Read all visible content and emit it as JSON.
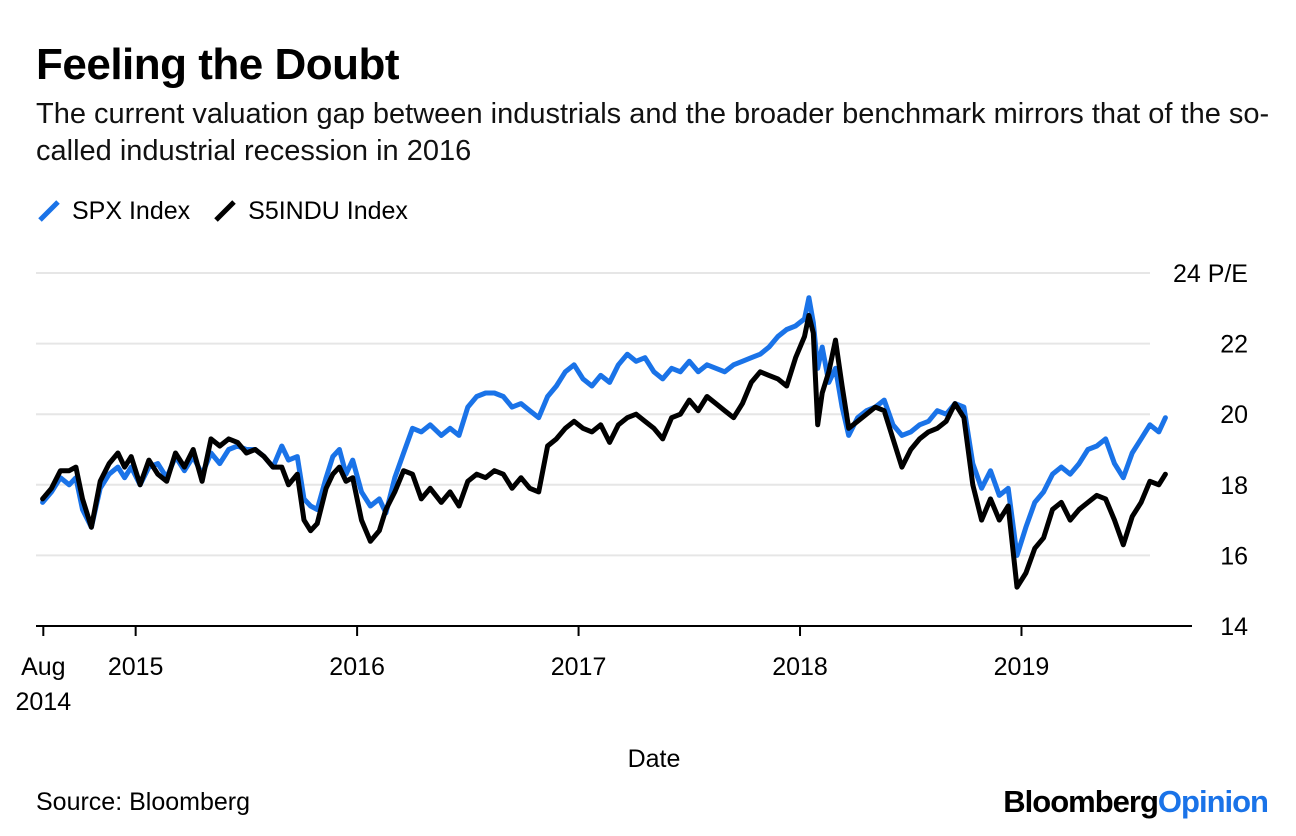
{
  "title": "Feeling the Doubt",
  "subtitle": "The current valuation gap between industrials and the broader benchmark mirrors that of the so-called industrial recession in 2016",
  "source": "Source: Bloomberg",
  "logo": {
    "brand": "Bloomberg",
    "section": "Opinion"
  },
  "colors": {
    "spx": "#1a73e8",
    "indu": "#000000",
    "grid": "#e6e6e6",
    "logo_accent": "#1a73e8"
  },
  "chart_data": {
    "type": "line",
    "xlabel": "Date",
    "ylabel": "",
    "y_unit_label": "P/E",
    "ylim": [
      14,
      24
    ],
    "xlim": [
      2014.55,
      2019.77
    ],
    "yticks": [
      14,
      16,
      18,
      20,
      22,
      24
    ],
    "xticks": [
      {
        "value": 2014.583,
        "label": "Aug",
        "sublabel": "2014"
      },
      {
        "value": 2015.0,
        "label": "2015"
      },
      {
        "value": 2016.0,
        "label": "2016"
      },
      {
        "value": 2017.0,
        "label": "2017"
      },
      {
        "value": 2018.0,
        "label": "2018"
      },
      {
        "value": 2019.0,
        "label": "2019"
      }
    ],
    "grid": true,
    "legend_position": "top-left",
    "series": [
      {
        "name": "SPX Index",
        "color": "#1a73e8",
        "points": [
          [
            2014.58,
            17.5
          ],
          [
            2014.62,
            17.8
          ],
          [
            2014.66,
            18.2
          ],
          [
            2014.7,
            18.0
          ],
          [
            2014.73,
            18.2
          ],
          [
            2014.76,
            17.3
          ],
          [
            2014.8,
            16.8
          ],
          [
            2014.84,
            17.9
          ],
          [
            2014.88,
            18.3
          ],
          [
            2014.92,
            18.5
          ],
          [
            2014.95,
            18.2
          ],
          [
            2014.98,
            18.5
          ],
          [
            2015.02,
            18.0
          ],
          [
            2015.06,
            18.5
          ],
          [
            2015.1,
            18.6
          ],
          [
            2015.14,
            18.2
          ],
          [
            2015.18,
            18.8
          ],
          [
            2015.22,
            18.4
          ],
          [
            2015.26,
            18.8
          ],
          [
            2015.3,
            18.3
          ],
          [
            2015.34,
            18.9
          ],
          [
            2015.38,
            18.6
          ],
          [
            2015.42,
            19.0
          ],
          [
            2015.46,
            19.1
          ],
          [
            2015.5,
            19.0
          ],
          [
            2015.54,
            19.0
          ],
          [
            2015.58,
            18.8
          ],
          [
            2015.62,
            18.5
          ],
          [
            2015.66,
            19.1
          ],
          [
            2015.69,
            18.7
          ],
          [
            2015.73,
            18.8
          ],
          [
            2015.76,
            17.6
          ],
          [
            2015.79,
            17.4
          ],
          [
            2015.82,
            17.3
          ],
          [
            2015.86,
            18.2
          ],
          [
            2015.89,
            18.8
          ],
          [
            2015.92,
            19.0
          ],
          [
            2015.95,
            18.3
          ],
          [
            2015.98,
            18.7
          ],
          [
            2016.02,
            17.8
          ],
          [
            2016.06,
            17.4
          ],
          [
            2016.1,
            17.6
          ],
          [
            2016.13,
            17.2
          ],
          [
            2016.17,
            18.2
          ],
          [
            2016.21,
            18.9
          ],
          [
            2016.25,
            19.6
          ],
          [
            2016.29,
            19.5
          ],
          [
            2016.33,
            19.7
          ],
          [
            2016.38,
            19.4
          ],
          [
            2016.42,
            19.6
          ],
          [
            2016.46,
            19.4
          ],
          [
            2016.5,
            20.2
          ],
          [
            2016.54,
            20.5
          ],
          [
            2016.58,
            20.6
          ],
          [
            2016.62,
            20.6
          ],
          [
            2016.66,
            20.5
          ],
          [
            2016.7,
            20.2
          ],
          [
            2016.74,
            20.3
          ],
          [
            2016.78,
            20.1
          ],
          [
            2016.82,
            19.9
          ],
          [
            2016.86,
            20.5
          ],
          [
            2016.9,
            20.8
          ],
          [
            2016.94,
            21.2
          ],
          [
            2016.98,
            21.4
          ],
          [
            2017.02,
            21.0
          ],
          [
            2017.06,
            20.8
          ],
          [
            2017.1,
            21.1
          ],
          [
            2017.14,
            20.9
          ],
          [
            2017.18,
            21.4
          ],
          [
            2017.22,
            21.7
          ],
          [
            2017.26,
            21.5
          ],
          [
            2017.3,
            21.6
          ],
          [
            2017.34,
            21.2
          ],
          [
            2017.38,
            21.0
          ],
          [
            2017.42,
            21.3
          ],
          [
            2017.46,
            21.2
          ],
          [
            2017.5,
            21.5
          ],
          [
            2017.54,
            21.2
          ],
          [
            2017.58,
            21.4
          ],
          [
            2017.62,
            21.3
          ],
          [
            2017.66,
            21.2
          ],
          [
            2017.7,
            21.4
          ],
          [
            2017.74,
            21.5
          ],
          [
            2017.78,
            21.6
          ],
          [
            2017.82,
            21.7
          ],
          [
            2017.86,
            21.9
          ],
          [
            2017.9,
            22.2
          ],
          [
            2017.94,
            22.4
          ],
          [
            2017.98,
            22.5
          ],
          [
            2018.02,
            22.7
          ],
          [
            2018.04,
            23.3
          ],
          [
            2018.06,
            22.6
          ],
          [
            2018.08,
            21.3
          ],
          [
            2018.1,
            21.9
          ],
          [
            2018.13,
            20.9
          ],
          [
            2018.16,
            21.3
          ],
          [
            2018.19,
            20.2
          ],
          [
            2018.22,
            19.4
          ],
          [
            2018.26,
            19.9
          ],
          [
            2018.3,
            20.1
          ],
          [
            2018.34,
            20.2
          ],
          [
            2018.38,
            20.4
          ],
          [
            2018.42,
            19.7
          ],
          [
            2018.46,
            19.4
          ],
          [
            2018.5,
            19.5
          ],
          [
            2018.54,
            19.7
          ],
          [
            2018.58,
            19.8
          ],
          [
            2018.62,
            20.1
          ],
          [
            2018.66,
            20.0
          ],
          [
            2018.7,
            20.3
          ],
          [
            2018.74,
            20.2
          ],
          [
            2018.78,
            18.6
          ],
          [
            2018.82,
            17.9
          ],
          [
            2018.86,
            18.4
          ],
          [
            2018.9,
            17.7
          ],
          [
            2018.94,
            17.9
          ],
          [
            2018.98,
            16.0
          ],
          [
            2019.02,
            16.8
          ],
          [
            2019.06,
            17.5
          ],
          [
            2019.1,
            17.8
          ],
          [
            2019.14,
            18.3
          ],
          [
            2019.18,
            18.5
          ],
          [
            2019.22,
            18.3
          ],
          [
            2019.26,
            18.6
          ],
          [
            2019.3,
            19.0
          ],
          [
            2019.34,
            19.1
          ],
          [
            2019.38,
            19.3
          ],
          [
            2019.42,
            18.6
          ],
          [
            2019.46,
            18.2
          ],
          [
            2019.5,
            18.9
          ],
          [
            2019.54,
            19.3
          ],
          [
            2019.58,
            19.7
          ],
          [
            2019.62,
            19.5
          ],
          [
            2019.65,
            19.9
          ]
        ]
      },
      {
        "name": "S5INDU Index",
        "color": "#000000",
        "points": [
          [
            2014.58,
            17.6
          ],
          [
            2014.62,
            17.9
          ],
          [
            2014.66,
            18.4
          ],
          [
            2014.7,
            18.4
          ],
          [
            2014.73,
            18.5
          ],
          [
            2014.76,
            17.6
          ],
          [
            2014.8,
            16.8
          ],
          [
            2014.84,
            18.1
          ],
          [
            2014.88,
            18.6
          ],
          [
            2014.92,
            18.9
          ],
          [
            2014.95,
            18.5
          ],
          [
            2014.98,
            18.8
          ],
          [
            2015.02,
            18.0
          ],
          [
            2015.06,
            18.7
          ],
          [
            2015.1,
            18.3
          ],
          [
            2015.14,
            18.1
          ],
          [
            2015.18,
            18.9
          ],
          [
            2015.22,
            18.5
          ],
          [
            2015.26,
            19.0
          ],
          [
            2015.3,
            18.1
          ],
          [
            2015.34,
            19.3
          ],
          [
            2015.38,
            19.1
          ],
          [
            2015.42,
            19.3
          ],
          [
            2015.46,
            19.2
          ],
          [
            2015.5,
            18.9
          ],
          [
            2015.54,
            19.0
          ],
          [
            2015.58,
            18.8
          ],
          [
            2015.62,
            18.5
          ],
          [
            2015.66,
            18.5
          ],
          [
            2015.69,
            18.0
          ],
          [
            2015.73,
            18.3
          ],
          [
            2015.76,
            17.0
          ],
          [
            2015.79,
            16.7
          ],
          [
            2015.82,
            16.9
          ],
          [
            2015.86,
            17.9
          ],
          [
            2015.89,
            18.3
          ],
          [
            2015.92,
            18.5
          ],
          [
            2015.95,
            18.1
          ],
          [
            2015.98,
            18.2
          ],
          [
            2016.02,
            17.0
          ],
          [
            2016.06,
            16.4
          ],
          [
            2016.1,
            16.7
          ],
          [
            2016.13,
            17.3
          ],
          [
            2016.17,
            17.8
          ],
          [
            2016.21,
            18.4
          ],
          [
            2016.25,
            18.3
          ],
          [
            2016.29,
            17.6
          ],
          [
            2016.33,
            17.9
          ],
          [
            2016.38,
            17.5
          ],
          [
            2016.42,
            17.8
          ],
          [
            2016.46,
            17.4
          ],
          [
            2016.5,
            18.1
          ],
          [
            2016.54,
            18.3
          ],
          [
            2016.58,
            18.2
          ],
          [
            2016.62,
            18.4
          ],
          [
            2016.66,
            18.3
          ],
          [
            2016.7,
            17.9
          ],
          [
            2016.74,
            18.2
          ],
          [
            2016.78,
            17.9
          ],
          [
            2016.82,
            17.8
          ],
          [
            2016.86,
            19.1
          ],
          [
            2016.9,
            19.3
          ],
          [
            2016.94,
            19.6
          ],
          [
            2016.98,
            19.8
          ],
          [
            2017.02,
            19.6
          ],
          [
            2017.06,
            19.5
          ],
          [
            2017.1,
            19.7
          ],
          [
            2017.14,
            19.2
          ],
          [
            2017.18,
            19.7
          ],
          [
            2017.22,
            19.9
          ],
          [
            2017.26,
            20.0
          ],
          [
            2017.3,
            19.8
          ],
          [
            2017.34,
            19.6
          ],
          [
            2017.38,
            19.3
          ],
          [
            2017.42,
            19.9
          ],
          [
            2017.46,
            20.0
          ],
          [
            2017.5,
            20.4
          ],
          [
            2017.54,
            20.1
          ],
          [
            2017.58,
            20.5
          ],
          [
            2017.62,
            20.3
          ],
          [
            2017.66,
            20.1
          ],
          [
            2017.7,
            19.9
          ],
          [
            2017.74,
            20.3
          ],
          [
            2017.78,
            20.9
          ],
          [
            2017.82,
            21.2
          ],
          [
            2017.86,
            21.1
          ],
          [
            2017.9,
            21.0
          ],
          [
            2017.94,
            20.8
          ],
          [
            2017.98,
            21.6
          ],
          [
            2018.02,
            22.2
          ],
          [
            2018.04,
            22.8
          ],
          [
            2018.06,
            22.3
          ],
          [
            2018.08,
            19.7
          ],
          [
            2018.1,
            20.6
          ],
          [
            2018.13,
            21.2
          ],
          [
            2018.16,
            22.1
          ],
          [
            2018.19,
            20.8
          ],
          [
            2018.22,
            19.6
          ],
          [
            2018.26,
            19.8
          ],
          [
            2018.3,
            20.0
          ],
          [
            2018.34,
            20.2
          ],
          [
            2018.38,
            20.1
          ],
          [
            2018.42,
            19.3
          ],
          [
            2018.46,
            18.5
          ],
          [
            2018.5,
            19.0
          ],
          [
            2018.54,
            19.3
          ],
          [
            2018.58,
            19.5
          ],
          [
            2018.62,
            19.6
          ],
          [
            2018.66,
            19.8
          ],
          [
            2018.7,
            20.3
          ],
          [
            2018.74,
            19.9
          ],
          [
            2018.78,
            18.0
          ],
          [
            2018.82,
            17.0
          ],
          [
            2018.86,
            17.6
          ],
          [
            2018.9,
            17.0
          ],
          [
            2018.94,
            17.4
          ],
          [
            2018.98,
            15.1
          ],
          [
            2019.02,
            15.5
          ],
          [
            2019.06,
            16.2
          ],
          [
            2019.1,
            16.5
          ],
          [
            2019.14,
            17.3
          ],
          [
            2019.18,
            17.5
          ],
          [
            2019.22,
            17.0
          ],
          [
            2019.26,
            17.3
          ],
          [
            2019.3,
            17.5
          ],
          [
            2019.34,
            17.7
          ],
          [
            2019.38,
            17.6
          ],
          [
            2019.42,
            17.0
          ],
          [
            2019.46,
            16.3
          ],
          [
            2019.5,
            17.1
          ],
          [
            2019.54,
            17.5
          ],
          [
            2019.58,
            18.1
          ],
          [
            2019.62,
            18.0
          ],
          [
            2019.65,
            18.3
          ]
        ]
      }
    ]
  }
}
